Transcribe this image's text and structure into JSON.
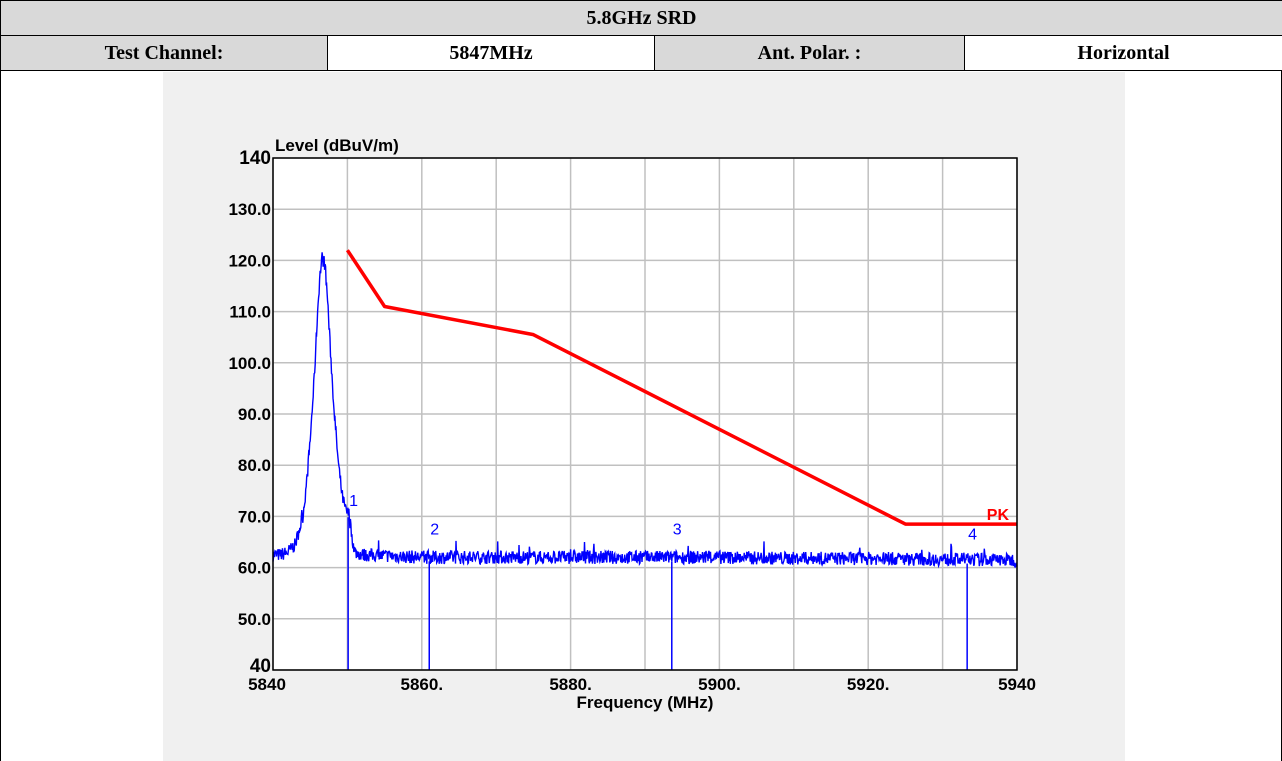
{
  "header": {
    "title": "5.8GHz SRD",
    "test_channel_label": "Test Channel:",
    "test_channel_value": "5847MHz",
    "ant_polar_label": "Ant. Polar. :",
    "ant_polar_value": "Horizontal"
  },
  "colors": {
    "trace": "#0000ff",
    "limit": "#ff0000",
    "grid": "#c0c0c0",
    "panel": "#f0f0f0"
  },
  "chart_data": {
    "type": "line",
    "title": "",
    "xlabel": "Frequency (MHz)",
    "ylabel": "Level (dBuV/m)",
    "xlim": [
      5840,
      5940
    ],
    "ylim": [
      40,
      140
    ],
    "x_ticks": [
      5840,
      5850,
      5860,
      5870,
      5880,
      5890,
      5900,
      5910,
      5920,
      5930,
      5940
    ],
    "x_tick_labels": [
      {
        "x": 5840,
        "label": "5840"
      },
      {
        "x": 5860,
        "label": "5860."
      },
      {
        "x": 5880,
        "label": "5880."
      },
      {
        "x": 5900,
        "label": "5900."
      },
      {
        "x": 5920,
        "label": "5920."
      },
      {
        "x": 5940,
        "label": "5940"
      }
    ],
    "y_tick_labels": [
      {
        "y": 140,
        "label": "140"
      },
      {
        "y": 130,
        "label": "130.0"
      },
      {
        "y": 120,
        "label": "120.0"
      },
      {
        "y": 110,
        "label": "110.0"
      },
      {
        "y": 100,
        "label": "100.0"
      },
      {
        "y": 90,
        "label": "90.0"
      },
      {
        "y": 80,
        "label": "80.0"
      },
      {
        "y": 70,
        "label": "70.0"
      },
      {
        "y": 60,
        "label": "60.0"
      },
      {
        "y": 50,
        "label": "50.0"
      },
      {
        "y": 40,
        "label": "40"
      }
    ],
    "grid": true,
    "series": [
      {
        "name": "PK",
        "kind": "limit",
        "x": [
          5850,
          5855,
          5875,
          5925,
          5940
        ],
        "y": [
          122,
          111,
          105.5,
          68.5,
          68.5
        ]
      },
      {
        "kind": "trace",
        "x": [
          5840,
          5841,
          5842,
          5843,
          5844,
          5844.5,
          5845,
          5845.5,
          5846,
          5846.3,
          5846.6,
          5847,
          5847.3,
          5847.7,
          5848.2,
          5848.8,
          5849.3,
          5849.8,
          5850.2,
          5850.6,
          5851,
          5852,
          5855,
          5860,
          5870,
          5880,
          5890,
          5900,
          5910,
          5920,
          5930,
          5940
        ],
        "y": [
          62.5,
          62.5,
          63,
          64.5,
          70,
          76,
          85,
          96,
          110,
          117,
          120.5,
          119,
          113,
          103,
          91,
          80,
          74,
          71,
          70.5,
          66,
          63,
          62.5,
          62.3,
          62,
          62,
          62,
          62,
          62,
          61.8,
          61.8,
          61.6,
          61.5
        ]
      }
    ],
    "markers": [
      {
        "label": "1",
        "x": 5850.1
      },
      {
        "label": "2",
        "x": 5861
      },
      {
        "label": "3",
        "x": 5893.6
      },
      {
        "label": "4",
        "x": 5933.3
      }
    ]
  }
}
